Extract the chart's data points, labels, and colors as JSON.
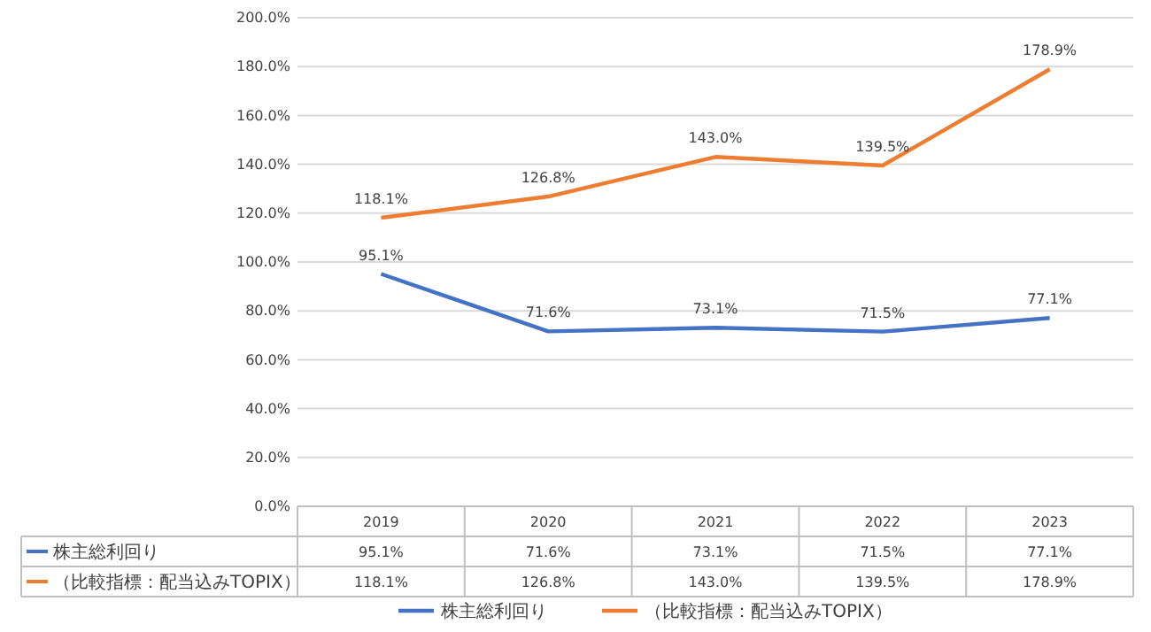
{
  "chart_data": {
    "type": "line",
    "categories": [
      "2019",
      "2020",
      "2021",
      "2022",
      "2023"
    ],
    "series": [
      {
        "name": "株主総利回り",
        "color": "#4472c4",
        "values": [
          95.1,
          71.6,
          73.1,
          71.5,
          77.1
        ],
        "value_labels": [
          "95.1%",
          "71.6%",
          "73.1%",
          "71.5%",
          "77.1%"
        ]
      },
      {
        "name": "（比較指標：配当込みTOPIX）",
        "color": "#ed7d31",
        "values": [
          118.1,
          126.8,
          143.0,
          139.5,
          178.9
        ],
        "value_labels": [
          "118.1%",
          "126.8%",
          "143.0%",
          "139.5%",
          "178.9%"
        ]
      }
    ],
    "ylim": [
      0,
      200
    ],
    "yticks": [
      {
        "value": 0,
        "label": "0.0%"
      },
      {
        "value": 20,
        "label": "20.0%"
      },
      {
        "value": 40,
        "label": "40.0%"
      },
      {
        "value": 60,
        "label": "60.0%"
      },
      {
        "value": 80,
        "label": "80.0%"
      },
      {
        "value": 100,
        "label": "100.0%"
      },
      {
        "value": 120,
        "label": "120.0%"
      },
      {
        "value": 140,
        "label": "140.0%"
      },
      {
        "value": 160,
        "label": "160.0%"
      },
      {
        "value": 180,
        "label": "180.0%"
      },
      {
        "value": 200,
        "label": "200.0%"
      }
    ],
    "grid": "y",
    "legend": "bottom",
    "marker": "none",
    "line_style": "solid"
  }
}
